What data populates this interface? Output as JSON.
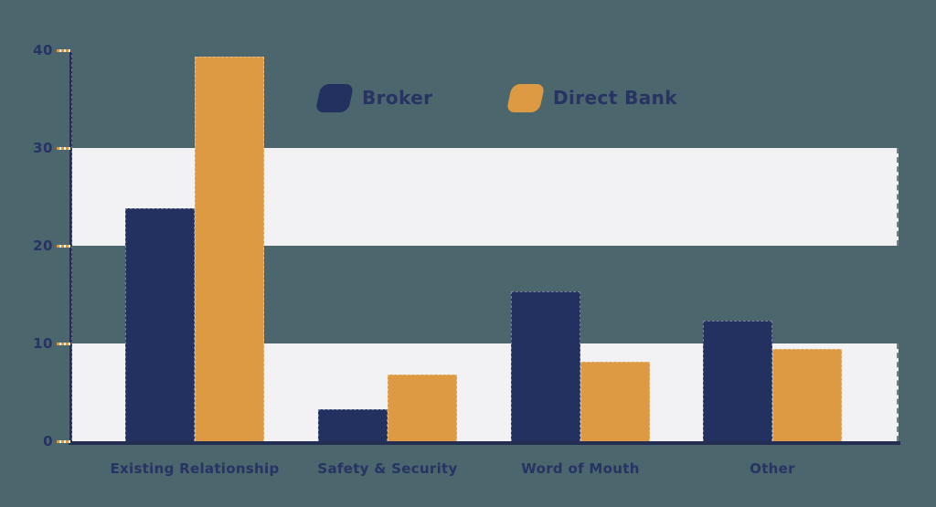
{
  "colors": {
    "background": "#4c666d",
    "band": "#f2f2f4",
    "navy": "#22315f",
    "orange": "#dd9a43",
    "axis": "#242e52",
    "label_text": "#273363",
    "tick_dash_orange": "#dd9a43",
    "tick_dash_light": "#f2f2f4"
  },
  "legend": {
    "items": [
      {
        "label": "Broker",
        "color": "#22315f"
      },
      {
        "label": "Direct Bank",
        "color": "#dd9a43"
      }
    ]
  },
  "chart_data": {
    "type": "bar",
    "title": "",
    "xlabel": "",
    "ylabel": "",
    "categories": [
      "Existing Relationship",
      "Safety & Security",
      "Word of Mouth",
      "Other"
    ],
    "series": [
      {
        "name": "Broker",
        "color": "#22315f",
        "values": [
          23.8,
          3.3,
          15.3,
          12.3
        ]
      },
      {
        "name": "Direct Bank",
        "color": "#dd9a43",
        "values": [
          39.3,
          6.8,
          8.1,
          9.4
        ]
      }
    ],
    "ylim": [
      0,
      40
    ],
    "y_ticks": [
      0,
      10,
      20,
      30,
      40
    ],
    "y_tick_labels": [
      "0",
      "10",
      "20",
      "30",
      "40"
    ],
    "grid": "alternating-horizontal-bands",
    "bands": [
      [
        0,
        10
      ],
      [
        20,
        30
      ]
    ],
    "legend_position": "top-center"
  }
}
